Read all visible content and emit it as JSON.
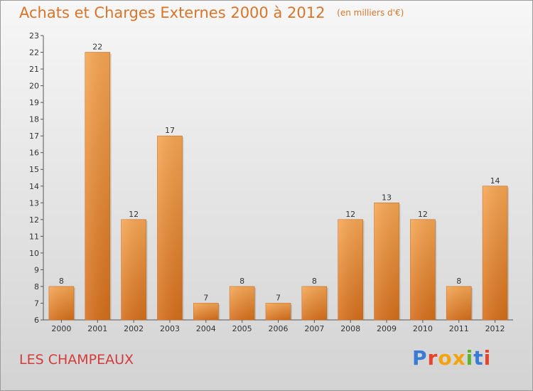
{
  "header": {
    "title": "Achats et Charges Externes 2000 à 2012",
    "unit": "(en milliers d'€)"
  },
  "footer": {
    "town": "LES CHAMPEAUX",
    "logo": "Proxiti"
  },
  "colors": {
    "bar_light": "#f6a653",
    "bar_dark": "#d56f1b",
    "title": "#d9742a",
    "town": "#d43c3c",
    "logo_letters": [
      "#3a7bd5",
      "#e4432c",
      "#f2a30f",
      "#f2a30f",
      "#5cb531",
      "#3a7bd5",
      "#e4432c"
    ]
  },
  "chart_data": {
    "type": "bar",
    "title": "Achats et Charges Externes 2000 à 2012",
    "subtitle": "(en milliers d'€)",
    "categories": [
      "2000",
      "2001",
      "2002",
      "2003",
      "2004",
      "2005",
      "2006",
      "2007",
      "2008",
      "2009",
      "2010",
      "2011",
      "2012"
    ],
    "values": [
      8,
      22,
      12,
      17,
      7,
      8,
      7,
      8,
      12,
      13,
      12,
      8,
      14
    ],
    "ylim": [
      6,
      23
    ],
    "yticks": [
      6,
      7,
      8,
      9,
      10,
      11,
      12,
      13,
      14,
      15,
      16,
      17,
      18,
      19,
      20,
      21,
      22,
      23
    ],
    "grid": false,
    "legend": "none"
  }
}
